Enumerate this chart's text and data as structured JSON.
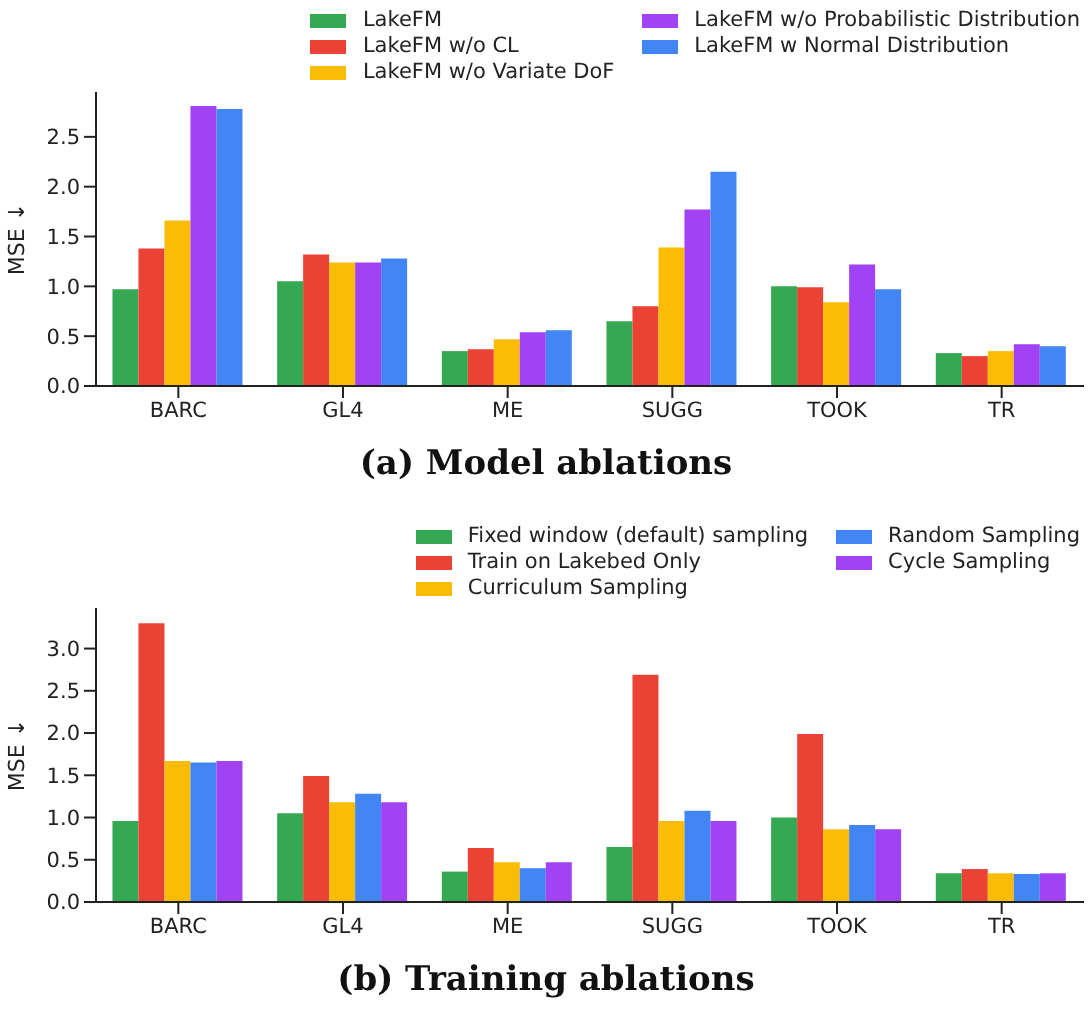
{
  "chart_data": [
    {
      "type": "bar",
      "title": "(a) Model ablations",
      "ylabel": "MSE ↓",
      "categories": [
        "BARC",
        "GL4",
        "ME",
        "SUGG",
        "TOOK",
        "TR"
      ],
      "series": [
        {
          "name": "LakeFM",
          "color": "#34a853",
          "values": [
            0.97,
            1.05,
            0.35,
            0.65,
            1.0,
            0.33
          ]
        },
        {
          "name": "LakeFM w/o CL",
          "color": "#ea4335",
          "values": [
            1.38,
            1.32,
            0.37,
            0.8,
            0.99,
            0.3
          ]
        },
        {
          "name": "LakeFM w/o Variate DoF",
          "color": "#fbbc05",
          "values": [
            1.66,
            1.24,
            0.47,
            1.39,
            0.84,
            0.35
          ]
        },
        {
          "name": "LakeFM w/o Probabilistic Distribution",
          "color": "#a142f4",
          "values": [
            2.81,
            1.24,
            0.54,
            1.77,
            1.22,
            0.42
          ]
        },
        {
          "name": "LakeFM w Normal Distribution",
          "color": "#4285f4",
          "values": [
            2.78,
            1.28,
            0.56,
            2.15,
            0.97,
            0.4
          ]
        }
      ],
      "ylim": [
        0,
        2.95
      ],
      "yticks": [
        {
          "value": 0,
          "label": "0.0"
        },
        0.5,
        {
          "value": 1,
          "label": "1.0"
        },
        1.5,
        {
          "value": 2,
          "label": "2.0"
        },
        2.5
      ],
      "grid": false,
      "legend": "top right"
    },
    {
      "type": "bar",
      "title": "(b) Training ablations",
      "ylabel": "MSE ↓",
      "categories": [
        "BARC",
        "GL4",
        "ME",
        "SUGG",
        "TOOK",
        "TR"
      ],
      "series": [
        {
          "name": "Fixed window (default) sampling",
          "color": "#34a853",
          "values": [
            0.96,
            1.05,
            0.36,
            0.65,
            1.0,
            0.34
          ]
        },
        {
          "name": "Train on Lakebed Only",
          "color": "#ea4335",
          "values": [
            3.3,
            1.49,
            0.64,
            2.69,
            1.99,
            0.39
          ]
        },
        {
          "name": "Curriculum Sampling",
          "color": "#fbbc05",
          "values": [
            1.67,
            1.18,
            0.47,
            0.96,
            0.86,
            0.34
          ]
        },
        {
          "name": "Random Sampling",
          "color": "#4285f4",
          "values": [
            1.65,
            1.28,
            0.4,
            1.08,
            0.91,
            0.33
          ]
        },
        {
          "name": "Cycle Sampling",
          "color": "#a142f4",
          "values": [
            1.67,
            1.18,
            0.47,
            0.96,
            0.86,
            0.34
          ]
        }
      ],
      "ylim": [
        0,
        3.48
      ],
      "yticks": [
        {
          "value": 0,
          "label": "0.0"
        },
        0.5,
        {
          "value": 1,
          "label": "1.0"
        },
        1.5,
        {
          "value": 2,
          "label": "2.0"
        },
        2.5,
        {
          "value": 3,
          "label": "3.0"
        }
      ],
      "grid": false,
      "legend": "top right"
    }
  ]
}
